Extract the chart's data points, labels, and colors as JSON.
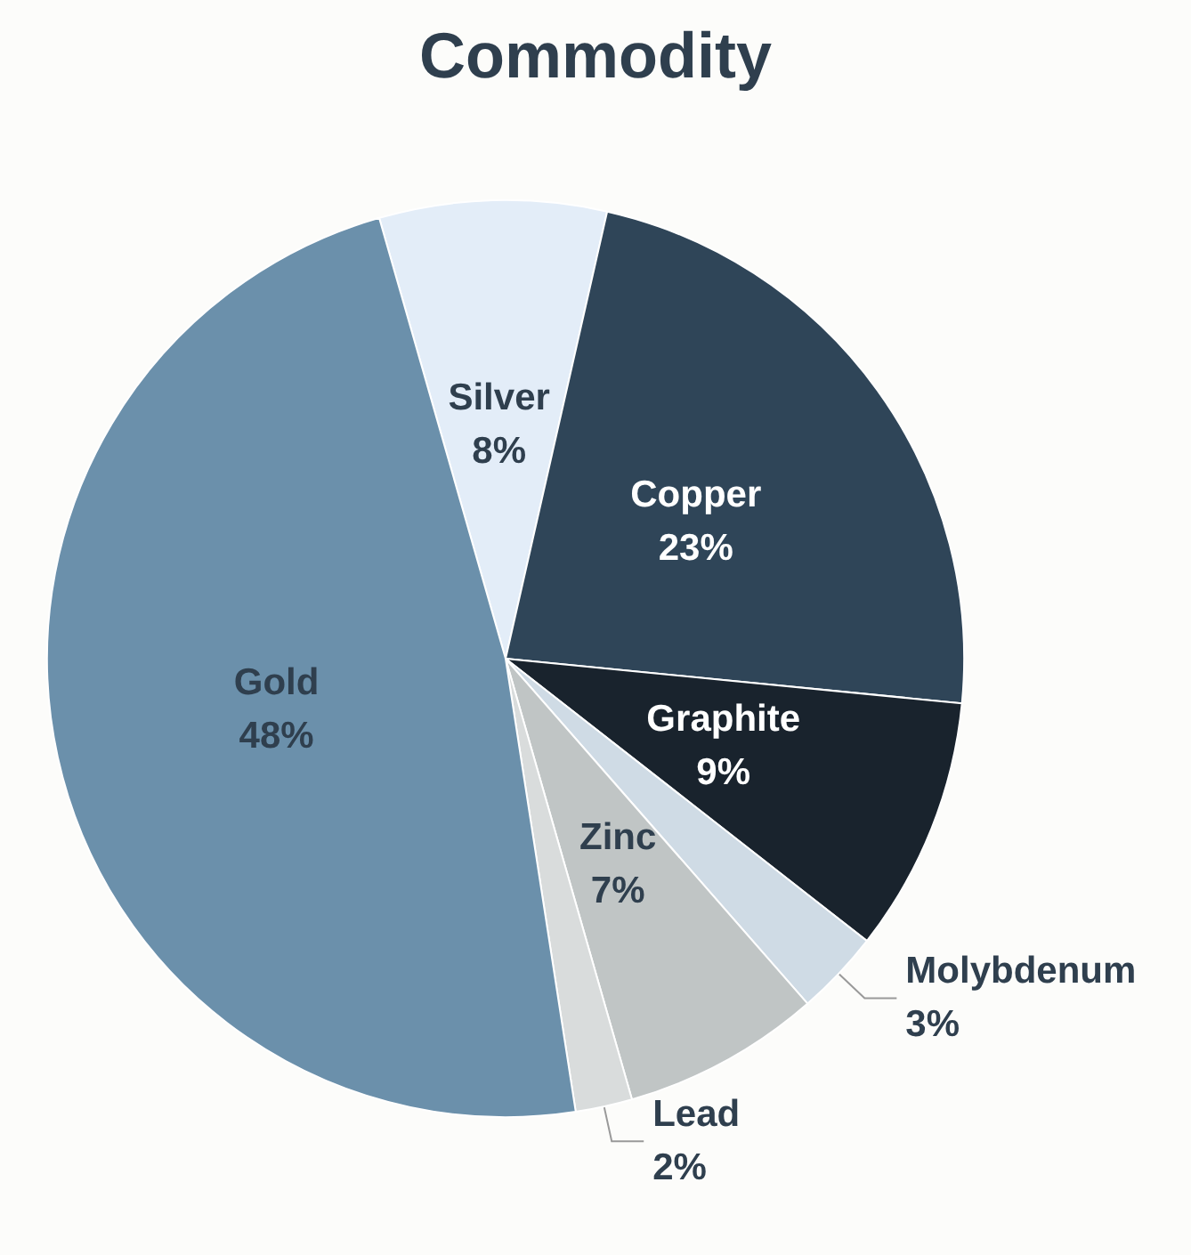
{
  "chart_data": {
    "type": "pie",
    "title": "Commodity",
    "categories": [
      "Silver",
      "Copper",
      "Graphite",
      "Molybdenum",
      "Zinc",
      "Lead",
      "Gold"
    ],
    "values": [
      8,
      23,
      9,
      3,
      7,
      2,
      48
    ],
    "value_labels": [
      "8%",
      "23%",
      "9%",
      "3%",
      "7%",
      "2%",
      "48%"
    ],
    "colors": [
      "#e3edf8",
      "#2f4558",
      "#19232d",
      "#cfdbe5",
      "#c0c5c5",
      "#d9dcdc",
      "#6b90ab"
    ],
    "legend": false
  }
}
